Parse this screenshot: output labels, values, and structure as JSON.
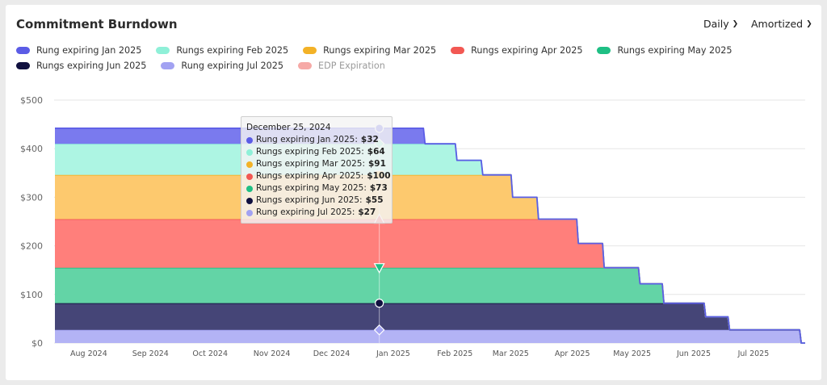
{
  "header": {
    "title": "Commitment Burndown",
    "granularity": "Daily",
    "cost_type": "Amortized"
  },
  "colors": {
    "fill": [
      "#7a7aee",
      "#adf5e3",
      "#fdc96e",
      "#ff7f7b",
      "#63d4a6",
      "#454577",
      "#b3b3f5"
    ],
    "stroke": [
      "#5b5ce6",
      "#8ff0d8",
      "#f3b227",
      "#f25853",
      "#1fbf84",
      "#10103f",
      "#a2a2f2"
    ],
    "edp": "#f6a9a6"
  },
  "legend": [
    "Rung expiring Jan 2025",
    "Rungs expiring Feb 2025",
    "Rungs expiring Mar 2025",
    "Rungs expiring Apr 2025",
    "Rungs expiring May 2025",
    "Rungs expiring Jun 2025",
    "Rung expiring Jul 2025",
    "EDP Expiration"
  ],
  "tooltip": {
    "date": "December 25, 2024",
    "rows": [
      {
        "label": "Rung expiring Jan 2025:",
        "value": "$32"
      },
      {
        "label": "Rungs expiring Feb 2025:",
        "value": "$64"
      },
      {
        "label": "Rungs expiring Mar 2025:",
        "value": "$91"
      },
      {
        "label": "Rungs expiring Apr 2025:",
        "value": "$100"
      },
      {
        "label": "Rungs expiring May 2025:",
        "value": "$73"
      },
      {
        "label": "Rungs expiring Jun 2025:",
        "value": "$55"
      },
      {
        "label": "Rung expiring Jul 2025:",
        "value": "$27"
      }
    ]
  },
  "chart_data": {
    "type": "area",
    "stacked": true,
    "x_type": "date",
    "xlim": [
      "2024-07-15",
      "2025-07-27"
    ],
    "ylim": [
      0,
      500
    ],
    "grid": true,
    "legend_position": "top-left",
    "x_ticks": [
      {
        "date": "2024-08-01",
        "label": "Aug 2024"
      },
      {
        "date": "2024-09-01",
        "label": "Sep 2024"
      },
      {
        "date": "2024-10-01",
        "label": "Oct 2024"
      },
      {
        "date": "2024-11-01",
        "label": "Nov 2024"
      },
      {
        "date": "2024-12-01",
        "label": "Dec 2024"
      },
      {
        "date": "2025-01-01",
        "label": "Jan 2025"
      },
      {
        "date": "2025-02-01",
        "label": "Feb 2025"
      },
      {
        "date": "2025-03-01",
        "label": "Mar 2025"
      },
      {
        "date": "2025-04-01",
        "label": "Apr 2025"
      },
      {
        "date": "2025-05-01",
        "label": "May 2025"
      },
      {
        "date": "2025-06-01",
        "label": "Jun 2025"
      },
      {
        "date": "2025-07-01",
        "label": "Jul 2025"
      }
    ],
    "y_ticks": [
      {
        "value": 0,
        "label": "$0"
      },
      {
        "value": 100,
        "label": "$100"
      },
      {
        "value": 200,
        "label": "$200"
      },
      {
        "value": 300,
        "label": "$300"
      },
      {
        "value": 400,
        "label": "$400"
      },
      {
        "value": 500,
        "label": "$500"
      }
    ],
    "series": [
      {
        "name": "Rung expiring Jan 2025",
        "points": [
          [
            "2024-07-15",
            32
          ],
          [
            "2025-01-16",
            32
          ],
          [
            "2025-01-17",
            0
          ]
        ]
      },
      {
        "name": "Rungs expiring Feb 2025",
        "points": [
          [
            "2024-07-15",
            64
          ],
          [
            "2025-02-01",
            64
          ],
          [
            "2025-02-02",
            30
          ],
          [
            "2025-02-14",
            30
          ],
          [
            "2025-02-15",
            0
          ]
        ]
      },
      {
        "name": "Rungs expiring Mar 2025",
        "points": [
          [
            "2024-07-15",
            91
          ],
          [
            "2025-03-01",
            91
          ],
          [
            "2025-03-02",
            45
          ],
          [
            "2025-03-14",
            45
          ],
          [
            "2025-03-15",
            0
          ]
        ]
      },
      {
        "name": "Rungs expiring Apr 2025",
        "points": [
          [
            "2024-07-15",
            100
          ],
          [
            "2025-04-03",
            100
          ],
          [
            "2025-04-04",
            50
          ],
          [
            "2025-04-16",
            50
          ],
          [
            "2025-04-17",
            0
          ]
        ]
      },
      {
        "name": "Rungs expiring May 2025",
        "points": [
          [
            "2024-07-15",
            73
          ],
          [
            "2025-05-04",
            73
          ],
          [
            "2025-05-05",
            40
          ],
          [
            "2025-05-16",
            40
          ],
          [
            "2025-05-17",
            0
          ]
        ]
      },
      {
        "name": "Rungs expiring Jun 2025",
        "points": [
          [
            "2024-07-15",
            55
          ],
          [
            "2025-06-06",
            55
          ],
          [
            "2025-06-07",
            27
          ],
          [
            "2025-06-18",
            27
          ],
          [
            "2025-06-19",
            0
          ]
        ]
      },
      {
        "name": "Rung expiring Jul 2025",
        "points": [
          [
            "2024-07-15",
            27
          ],
          [
            "2025-07-24",
            27
          ],
          [
            "2025-07-25",
            0
          ]
        ]
      }
    ],
    "hover": {
      "date": "2024-12-25",
      "markers": [
        "circle",
        "diamond",
        "square",
        "triangle-up",
        "triangle-down",
        "circle",
        "diamond"
      ]
    }
  }
}
